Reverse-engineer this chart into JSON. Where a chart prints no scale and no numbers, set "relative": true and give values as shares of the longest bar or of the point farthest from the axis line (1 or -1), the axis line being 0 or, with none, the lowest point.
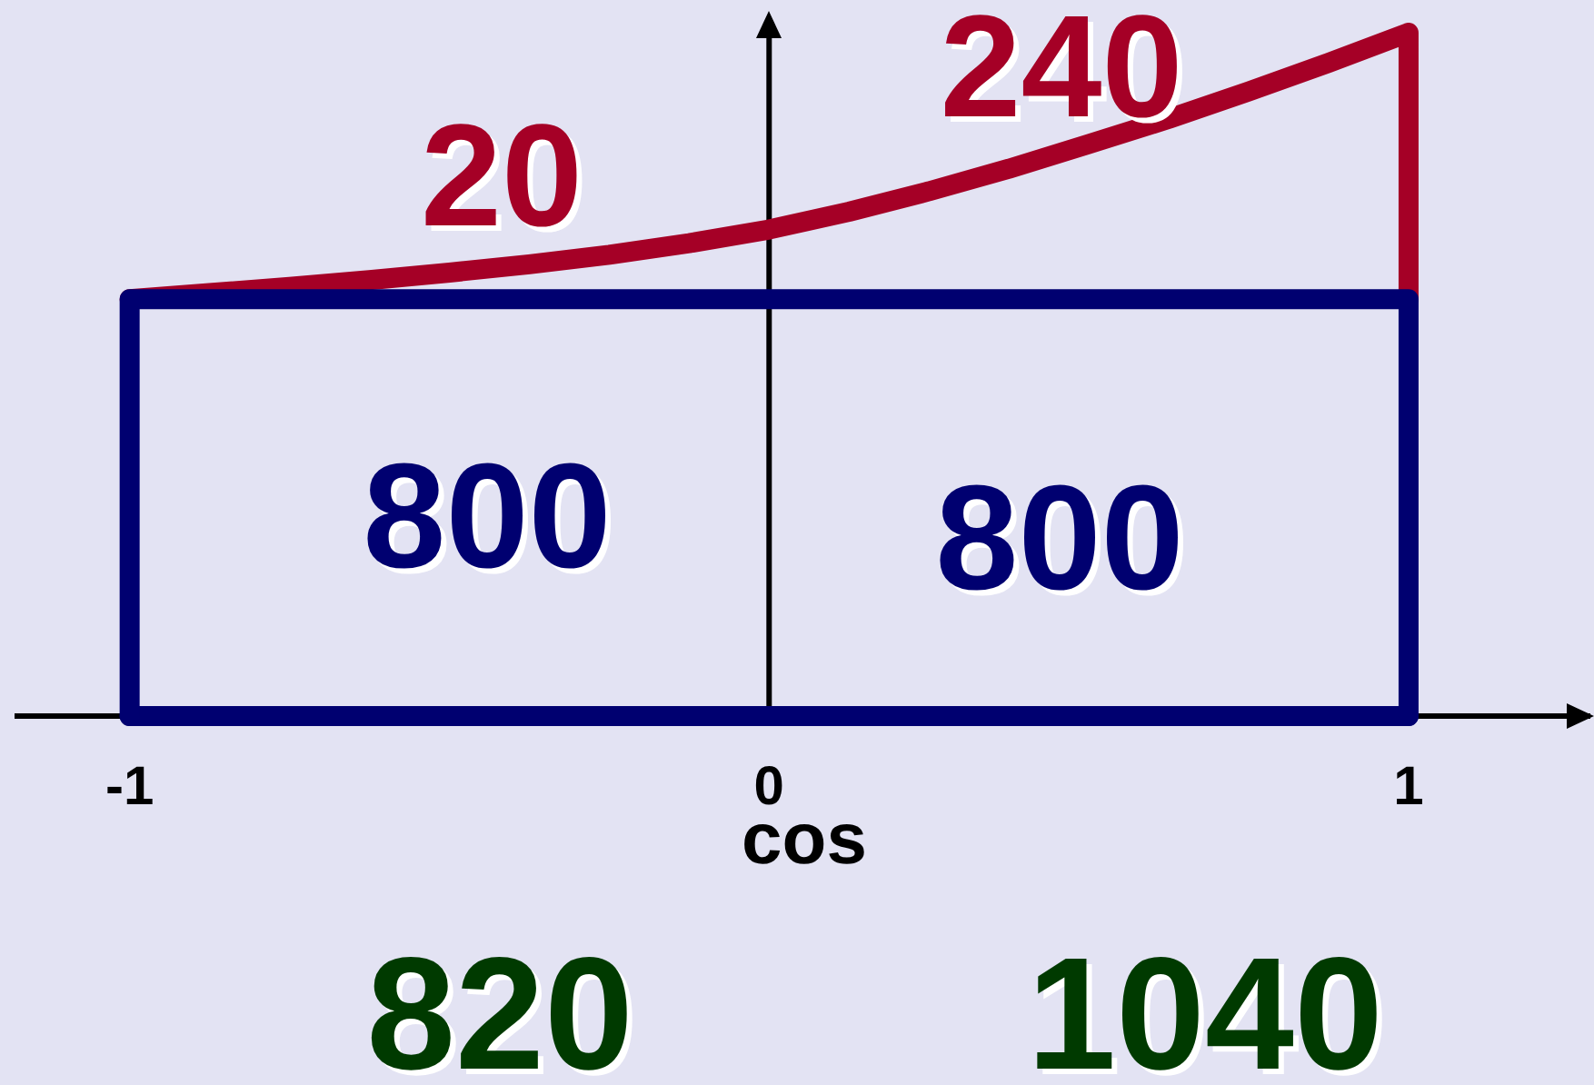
{
  "chart_data": {
    "type": "line",
    "relative": true,
    "xlabel": "cos",
    "xlim": [
      -1.18,
      1.29
    ],
    "xticks": [
      -1,
      0,
      1
    ],
    "series": [
      {
        "color": "#000070",
        "x": [
          -1,
          -1,
          1,
          1
        ],
        "values": [
          0,
          0.61,
          0.61,
          0
        ]
      },
      {
        "color": "#000070",
        "x": [
          -1,
          1
        ],
        "values": [
          0,
          0
        ]
      },
      {
        "color": "#a50026",
        "x": [
          -1,
          -0.875,
          -0.75,
          -0.625,
          -0.5,
          -0.375,
          -0.25,
          -0.125,
          0,
          0.125,
          0.25,
          0.375,
          0.5,
          0.625,
          0.75,
          0.875,
          1,
          1
        ],
        "values": [
          0.61,
          0.619,
          0.628,
          0.638,
          0.649,
          0.661,
          0.675,
          0.692,
          0.712,
          0.738,
          0.768,
          0.801,
          0.837,
          0.874,
          0.914,
          0.956,
          1,
          0.61
        ]
      }
    ],
    "annotations": [
      "240",
      "20",
      "800",
      "800",
      "820",
      "1040"
    ]
  }
}
